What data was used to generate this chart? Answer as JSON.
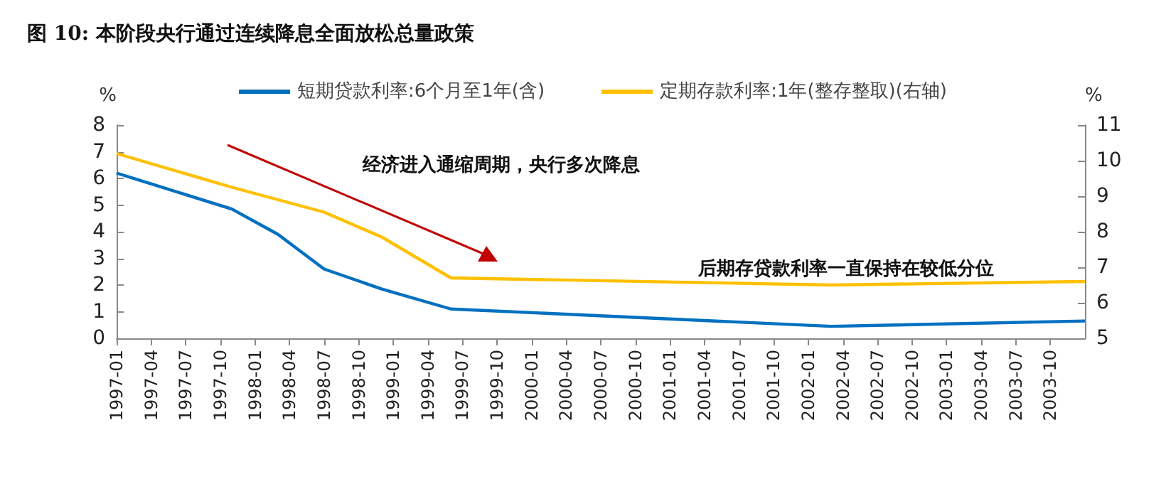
{
  "chart_data": {
    "type": "line",
    "title": "图 10: 本阶段央行通过连续降息全面放松总量政策",
    "ylabel": "%",
    "y2label": "%",
    "categories": [
      "1997-01",
      null,
      null,
      "1997-04",
      null,
      null,
      "1997-07",
      null,
      null,
      "1997-10",
      null,
      null,
      "1998-01",
      null,
      null,
      "1998-04",
      null,
      null,
      "1998-07",
      null,
      null,
      "1998-10",
      null,
      null,
      "1999-01",
      null,
      null,
      "1999-04",
      null,
      null,
      "1999-07",
      null,
      null,
      "1999-10",
      null,
      null,
      "2000-01",
      null,
      null,
      "2000-04",
      null,
      null,
      "2000-07",
      null,
      null,
      "2000-10",
      null,
      null,
      "2001-01",
      null,
      null,
      "2001-04",
      null,
      null,
      "2001-07",
      null,
      null,
      "2001-10",
      null,
      null,
      "2002-01",
      null,
      null,
      "2002-04",
      null,
      null,
      "2002-07",
      null,
      null,
      "2002-10",
      null,
      null,
      "2003-01",
      null,
      null,
      "2003-04",
      null,
      null,
      "2003-07",
      null,
      null,
      "2003-10",
      null,
      null,
      null
    ],
    "series": [
      {
        "name": "短期贷款利率:6个月至1年(含)",
        "color": "#0070c0",
        "values": [
          6.2,
          null,
          null,
          null,
          null,
          null,
          null,
          null,
          null,
          null,
          4.85,
          null,
          null,
          null,
          3.9,
          null,
          null,
          null,
          2.6,
          null,
          null,
          null,
          null,
          1.85,
          null,
          null,
          null,
          null,
          null,
          1.1,
          null,
          null,
          null,
          null,
          null,
          null,
          null,
          null,
          null,
          null,
          null,
          null,
          null,
          null,
          null,
          null,
          null,
          null,
          null,
          null,
          null,
          null,
          null,
          null,
          null,
          null,
          null,
          null,
          null,
          null,
          null,
          null,
          0.45,
          null,
          null,
          null,
          null,
          null,
          null,
          null,
          null,
          null,
          null,
          null,
          null,
          null,
          null,
          null,
          null,
          null,
          null,
          null,
          null,
          null,
          0.65
        ]
      },
      {
        "name": "定期存款利率:1年(整存整取)(右轴)",
        "color": "#ffc000",
        "axis": "y2",
        "values": [
          10.2,
          null,
          null,
          null,
          null,
          null,
          null,
          null,
          null,
          null,
          9.25,
          null,
          null,
          null,
          8.9,
          null,
          null,
          null,
          8.55,
          null,
          null,
          null,
          null,
          7.85,
          null,
          null,
          null,
          null,
          null,
          6.7,
          null,
          null,
          null,
          null,
          null,
          null,
          null,
          null,
          null,
          null,
          null,
          null,
          null,
          null,
          null,
          null,
          null,
          null,
          null,
          null,
          null,
          null,
          null,
          null,
          null,
          null,
          null,
          null,
          null,
          null,
          null,
          null,
          6.5,
          null,
          null,
          null,
          null,
          null,
          null,
          null,
          null,
          null,
          null,
          null,
          null,
          null,
          null,
          null,
          null,
          null,
          null,
          null,
          null,
          null,
          6.6
        ]
      }
    ],
    "ylim": [
      0,
      8
    ],
    "yticks": [
      0,
      1,
      2,
      3,
      4,
      5,
      6,
      7,
      8
    ],
    "y2lim": [
      5,
      11
    ],
    "y2ticks": [
      5,
      6,
      7,
      8,
      9,
      10,
      11
    ],
    "annotations": [
      "经济进入通缩周期，央行多次降息",
      "后期存贷款利率一直保持在较低分位"
    ],
    "grid": false,
    "legend": "top"
  }
}
